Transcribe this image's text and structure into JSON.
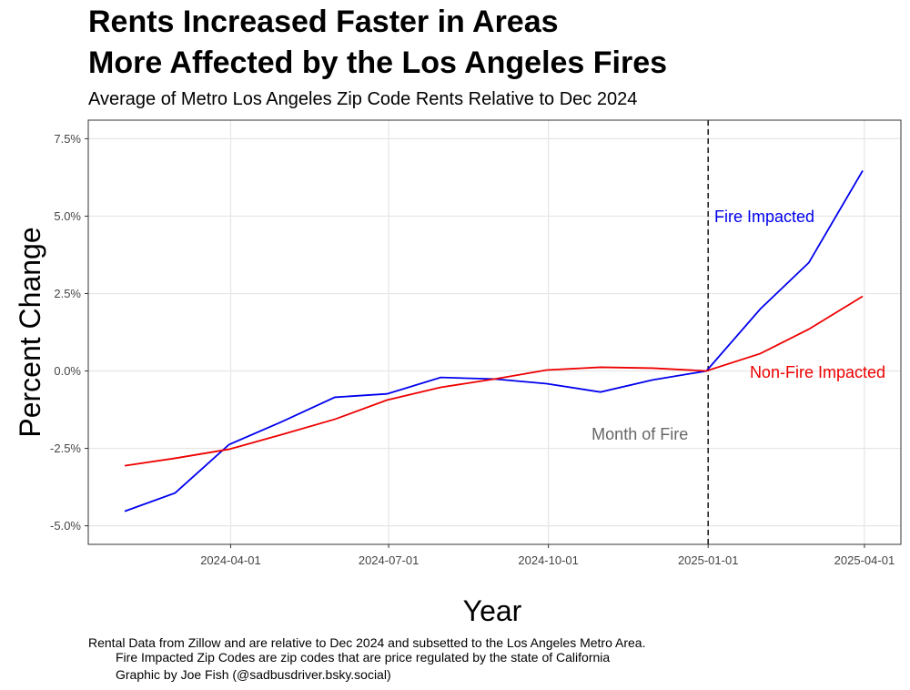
{
  "chart_data": {
    "type": "line",
    "title": [
      "Rents Increased Faster in Areas",
      "More Affected by the Los Angeles Fires"
    ],
    "subtitle": "Average of Metro Los Angeles Zip Code Rents Relative to Dec 2024",
    "x_label": "Year",
    "y_label": "Percent Change",
    "caption": [
      "Rental Data from Zillow and are relative to Dec 2024 and subsetted to the Los Angeles Metro Area.",
      "Fire Impacted Zip Codes are zip codes that are price regulated by the state of California",
      "Graphic by Joe Fish (@sadbusdriver.bsky.social)"
    ],
    "x": [
      "2024-01-31",
      "2024-02-29",
      "2024-03-31",
      "2024-04-30",
      "2024-05-31",
      "2024-06-30",
      "2024-07-31",
      "2024-08-31",
      "2024-09-30",
      "2024-10-31",
      "2024-11-30",
      "2024-12-31",
      "2025-01-31",
      "2025-02-28",
      "2025-03-31"
    ],
    "series": [
      {
        "name": "Fire Impacted",
        "color": "#0000ee",
        "values": [
          -4.53,
          -3.94,
          -2.38,
          -1.65,
          -0.85,
          -0.74,
          -0.21,
          -0.26,
          -0.41,
          -0.68,
          -0.29,
          0,
          2.0,
          3.5,
          6.47
        ]
      },
      {
        "name": "Non-Fire Impacted",
        "color": "#ee0000",
        "values": [
          -3.06,
          -2.82,
          -2.53,
          -2.06,
          -1.56,
          -0.94,
          -0.53,
          -0.26,
          0.03,
          0.12,
          0.09,
          0,
          0.56,
          1.35,
          2.41
        ]
      }
    ],
    "vline": {
      "x": "2025-01-01",
      "label": "Month of Fire"
    },
    "xlim": [
      "2024-01-10",
      "2025-04-22"
    ],
    "xticks": [
      "2024-04-01",
      "2024-07-01",
      "2024-10-01",
      "2025-01-01",
      "2025-04-01"
    ],
    "ylim": [
      -5.6,
      8.1
    ],
    "yticks": [
      {
        "value": -5,
        "label": "-5.0%"
      },
      {
        "value": -2.5,
        "label": "-2.5%"
      },
      {
        "value": 0,
        "label": "0.0%"
      },
      {
        "value": 2.5,
        "label": "2.5%"
      },
      {
        "value": 5,
        "label": "5.0%"
      },
      {
        "value": 7.5,
        "label": "7.5%"
      }
    ],
    "grid": true
  }
}
